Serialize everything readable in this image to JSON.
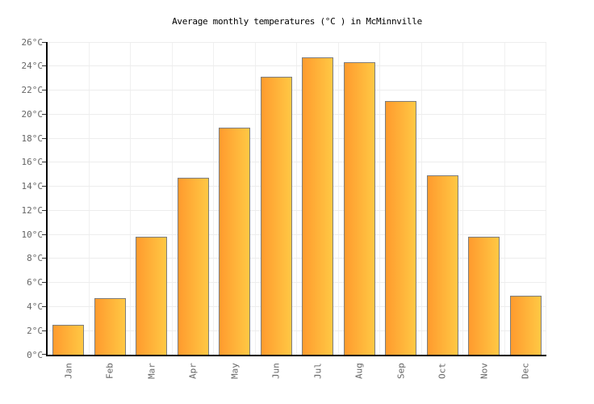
{
  "title": "Average monthly temperatures (°C ) in McMinnville",
  "chart_data": {
    "type": "bar",
    "title": "Average monthly temperatures (°C ) in McMinnville",
    "categories": [
      "Jan",
      "Feb",
      "Mar",
      "Apr",
      "May",
      "Jun",
      "Jul",
      "Aug",
      "Sep",
      "Oct",
      "Nov",
      "Dec"
    ],
    "values": [
      2.5,
      4.7,
      9.8,
      14.7,
      18.9,
      23.1,
      24.7,
      24.3,
      21.1,
      14.9,
      9.8,
      4.9
    ],
    "xlabel": "",
    "ylabel": "",
    "ylim": [
      0,
      26
    ],
    "ytick_step": 2,
    "ytick_labels": [
      "0°C",
      "2°C",
      "4°C",
      "6°C",
      "8°C",
      "10°C",
      "12°C",
      "14°C",
      "16°C",
      "18°C",
      "20°C",
      "22°C",
      "24°C",
      "26°C"
    ],
    "grid": true,
    "legend": "none",
    "colors": {
      "bar_gradient_left": "#ff9b2e",
      "bar_gradient_right": "#ffc844",
      "bar_border": "#7d7d7d",
      "axis": "#000000",
      "gridline": "#ededed",
      "tick_label": "#666666",
      "title_text": "#000000",
      "background": "#ffffff"
    }
  }
}
